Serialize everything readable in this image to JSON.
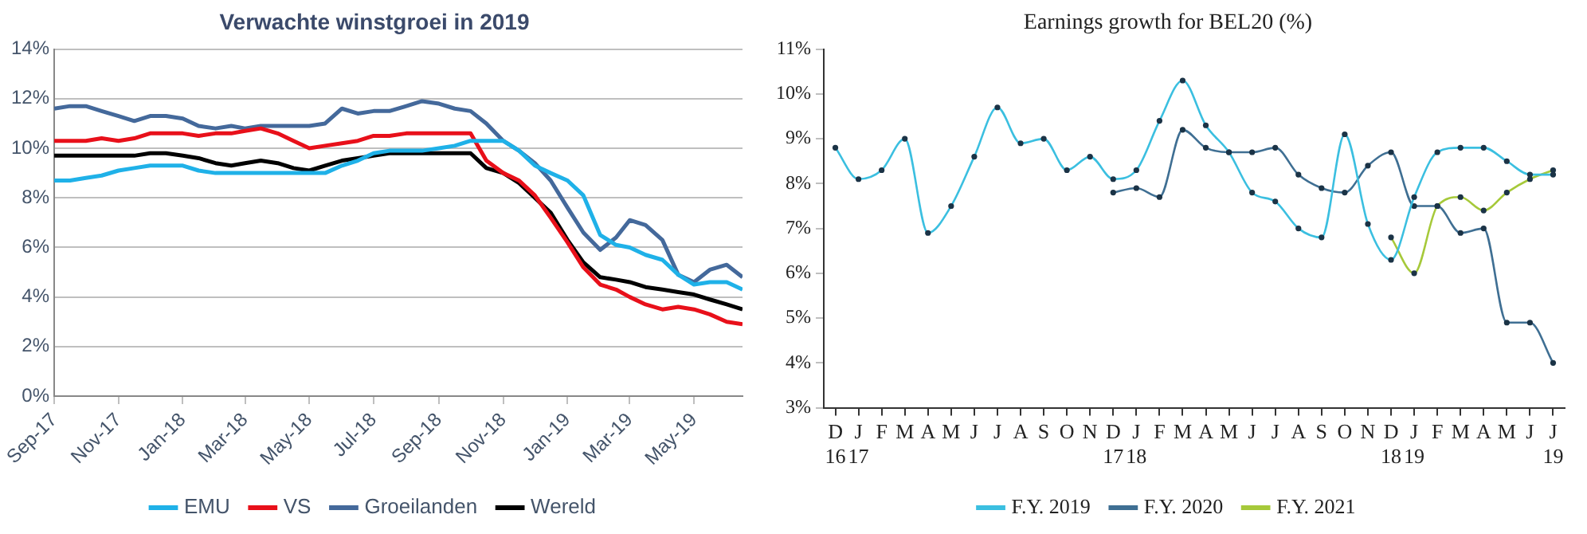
{
  "chart_data": [
    {
      "type": "line",
      "title": "Verwachte winstgroei in 2019",
      "x": [
        "2017-09-01",
        "2017-09-16",
        "2017-10-01",
        "2017-10-16",
        "2017-11-01",
        "2017-11-16",
        "2017-12-01",
        "2017-12-16",
        "2018-01-01",
        "2018-01-16",
        "2018-02-01",
        "2018-02-16",
        "2018-03-01",
        "2018-03-16",
        "2018-04-01",
        "2018-04-16",
        "2018-05-01",
        "2018-05-16",
        "2018-06-01",
        "2018-06-16",
        "2018-07-01",
        "2018-07-16",
        "2018-08-01",
        "2018-08-16",
        "2018-09-01",
        "2018-09-16",
        "2018-10-01",
        "2018-10-16",
        "2018-11-01",
        "2018-11-16",
        "2018-12-01",
        "2018-12-16",
        "2019-01-01",
        "2019-01-16",
        "2019-02-01",
        "2019-02-16",
        "2019-03-01",
        "2019-03-16",
        "2019-04-01",
        "2019-04-16",
        "2019-05-01",
        "2019-05-16",
        "2019-06-01",
        "2019-06-16"
      ],
      "series": [
        {
          "name": "EMU",
          "color": "#1fb1e8",
          "values": [
            8.7,
            8.7,
            8.8,
            8.9,
            9.1,
            9.2,
            9.3,
            9.3,
            9.3,
            9.1,
            9.0,
            9.0,
            9.0,
            9.0,
            9.0,
            9.0,
            9.0,
            9.0,
            9.3,
            9.5,
            9.8,
            9.9,
            9.9,
            9.9,
            10.0,
            10.1,
            10.3,
            10.3,
            10.3,
            9.9,
            9.3,
            9.0,
            8.7,
            8.1,
            6.5,
            6.1,
            6.0,
            5.7,
            5.5,
            4.9,
            4.5,
            4.6,
            4.6,
            4.3
          ]
        },
        {
          "name": "VS",
          "color": "#e8101a",
          "values": [
            10.3,
            10.3,
            10.3,
            10.4,
            10.3,
            10.4,
            10.6,
            10.6,
            10.6,
            10.5,
            10.6,
            10.6,
            10.7,
            10.8,
            10.6,
            10.3,
            10.0,
            10.1,
            10.2,
            10.3,
            10.5,
            10.5,
            10.6,
            10.6,
            10.6,
            10.6,
            10.6,
            9.5,
            9.0,
            8.7,
            8.1,
            7.2,
            6.2,
            5.2,
            4.5,
            4.3,
            4.0,
            3.7,
            3.5,
            3.6,
            3.5,
            3.3,
            3.0,
            2.9
          ]
        },
        {
          "name": "Groeilanden",
          "color": "#44699b",
          "values": [
            11.6,
            11.7,
            11.7,
            11.5,
            11.3,
            11.1,
            11.3,
            11.3,
            11.2,
            10.9,
            10.8,
            10.9,
            10.8,
            10.9,
            10.9,
            10.9,
            10.9,
            11.0,
            11.6,
            11.4,
            11.5,
            11.5,
            11.7,
            11.9,
            11.8,
            11.6,
            11.5,
            11.0,
            10.3,
            9.9,
            9.4,
            8.7,
            7.6,
            6.6,
            5.9,
            6.4,
            7.1,
            6.9,
            6.3,
            4.9,
            4.6,
            5.1,
            5.3,
            4.8
          ]
        },
        {
          "name": "Wereld",
          "color": "#000000",
          "values": [
            9.7,
            9.7,
            9.7,
            9.7,
            9.7,
            9.7,
            9.8,
            9.8,
            9.7,
            9.6,
            9.4,
            9.3,
            9.4,
            9.5,
            9.4,
            9.2,
            9.1,
            9.3,
            9.5,
            9.6,
            9.7,
            9.8,
            9.8,
            9.8,
            9.8,
            9.8,
            9.8,
            9.2,
            9.0,
            8.6,
            8.0,
            7.4,
            6.3,
            5.4,
            4.8,
            4.7,
            4.6,
            4.4,
            4.3,
            4.2,
            4.1,
            3.9,
            3.7,
            3.5
          ]
        }
      ],
      "xlim": [
        "2017-09-01",
        "2019-06-16"
      ],
      "xticks": [
        {
          "value": "2017-09-01",
          "label": "Sep-17"
        },
        {
          "value": "2017-11-01",
          "label": "Nov-17"
        },
        {
          "value": "2018-01-01",
          "label": "Jan-18"
        },
        {
          "value": "2018-03-01",
          "label": "Mar-18"
        },
        {
          "value": "2018-05-01",
          "label": "May-18"
        },
        {
          "value": "2018-07-01",
          "label": "Jul-18"
        },
        {
          "value": "2018-09-01",
          "label": "Sep-18"
        },
        {
          "value": "2018-11-01",
          "label": "Nov-18"
        },
        {
          "value": "2019-01-01",
          "label": "Jan-19"
        },
        {
          "value": "2019-03-01",
          "label": "Mar-19"
        },
        {
          "value": "2019-05-01",
          "label": "May-19"
        }
      ],
      "ylim": [
        0,
        14
      ],
      "yticks": [
        {
          "value": 0,
          "label": "0%"
        },
        {
          "value": 2,
          "label": "2%"
        },
        {
          "value": 4,
          "label": "4%"
        },
        {
          "value": 6,
          "label": "6%"
        },
        {
          "value": 8,
          "label": "8%"
        },
        {
          "value": 10,
          "label": "10%"
        },
        {
          "value": 12,
          "label": "12%"
        },
        {
          "value": 14,
          "label": "14%"
        }
      ],
      "grid": "y",
      "legend": "bottom"
    },
    {
      "type": "line",
      "title": "Earnings growth for BEL20 (%)",
      "categories": [
        "D\n16",
        "J\n17",
        "F",
        "M",
        "A",
        "M",
        "J",
        "J",
        "A",
        "S",
        "O",
        "N",
        "D\n17",
        "J\n18",
        "F",
        "M",
        "A",
        "M",
        "J",
        "J",
        "A",
        "S",
        "O",
        "N",
        "D\n18",
        "J\n19",
        "F",
        "M",
        "A",
        "M",
        "J",
        "J\n19"
      ],
      "series": [
        {
          "name": "F.Y. 2019",
          "color": "#3bbfe0",
          "values": [
            8.8,
            8.1,
            8.3,
            9.0,
            6.9,
            7.5,
            8.6,
            9.7,
            8.9,
            9.0,
            8.3,
            8.6,
            8.1,
            8.3,
            9.4,
            10.3,
            9.3,
            8.7,
            7.8,
            7.6,
            7.0,
            6.8,
            9.1,
            7.1,
            6.3,
            7.7,
            8.7,
            8.8,
            8.8,
            8.5,
            8.2,
            8.2
          ]
        },
        {
          "name": "F.Y. 2020",
          "color": "#3f6f93",
          "values": [
            null,
            null,
            null,
            null,
            null,
            null,
            null,
            null,
            null,
            null,
            null,
            null,
            7.8,
            7.9,
            7.7,
            9.2,
            8.8,
            8.7,
            8.7,
            8.8,
            8.2,
            7.9,
            7.8,
            8.4,
            8.7,
            7.5,
            7.5,
            6.9,
            7.0,
            4.9,
            4.9,
            4.0
          ]
        },
        {
          "name": "F.Y. 2021",
          "color": "#a6c93a",
          "values": [
            null,
            null,
            null,
            null,
            null,
            null,
            null,
            null,
            null,
            null,
            null,
            null,
            null,
            null,
            null,
            null,
            null,
            null,
            null,
            null,
            null,
            null,
            null,
            null,
            6.8,
            6.0,
            7.5,
            7.7,
            7.4,
            7.8,
            8.1,
            8.3
          ]
        }
      ],
      "ylim": [
        3,
        11
      ],
      "yticks": [
        {
          "value": 3,
          "label": "3%"
        },
        {
          "value": 4,
          "label": "4%"
        },
        {
          "value": 5,
          "label": "5%"
        },
        {
          "value": 6,
          "label": "6%"
        },
        {
          "value": 7,
          "label": "7%"
        },
        {
          "value": 8,
          "label": "8%"
        },
        {
          "value": 9,
          "label": "9%"
        },
        {
          "value": 10,
          "label": "10%"
        },
        {
          "value": 11,
          "label": "11%"
        }
      ],
      "marker": "circle",
      "legend": "bottom"
    }
  ]
}
